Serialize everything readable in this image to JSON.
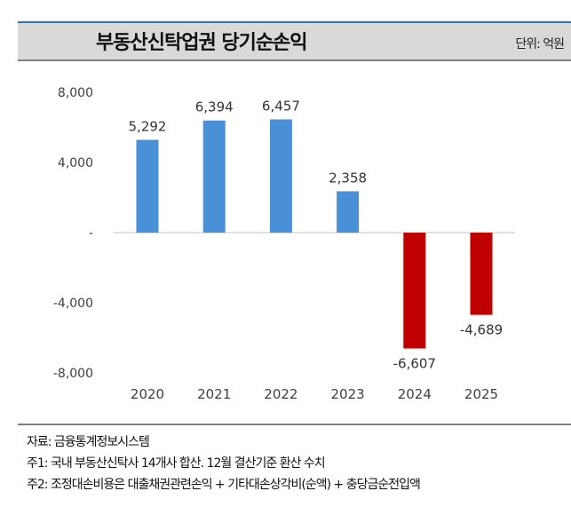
{
  "header": {
    "title": "부동산신탁업권 당기순손익",
    "unit": "단위: 억원"
  },
  "chart_data": {
    "type": "bar",
    "title": "부동산신탁업권 당기순손익",
    "unit": "단위: 억원",
    "categories": [
      "2020",
      "2021",
      "2022",
      "2023",
      "2024",
      "2025"
    ],
    "values": [
      5292,
      6394,
      6457,
      2358,
      -6607,
      -4689
    ],
    "data_labels": [
      "5,292",
      "6,394",
      "6,457",
      "2,358",
      "-6,607",
      "-4,689"
    ],
    "ylim": [
      -8000,
      8000
    ],
    "yticks": [
      8000,
      4000,
      0,
      -4000,
      -8000
    ],
    "ytick_labels": [
      "8,000",
      "4,000",
      "-",
      "-4,000",
      "-8,000"
    ],
    "grid": false,
    "colors": {
      "positive": "#4a90d9",
      "negative": "#c00000"
    }
  },
  "footer": {
    "source": "자료: 금융통계정보시스템",
    "note1": "주1: 국내 부동산신탁사 14개사 합산. 12월 결산기준 환산 수치",
    "note2": "주2: 조정대손비용은 대출채권관련손익 + 기타대손상각비(순액) + 충당금순전입액"
  }
}
